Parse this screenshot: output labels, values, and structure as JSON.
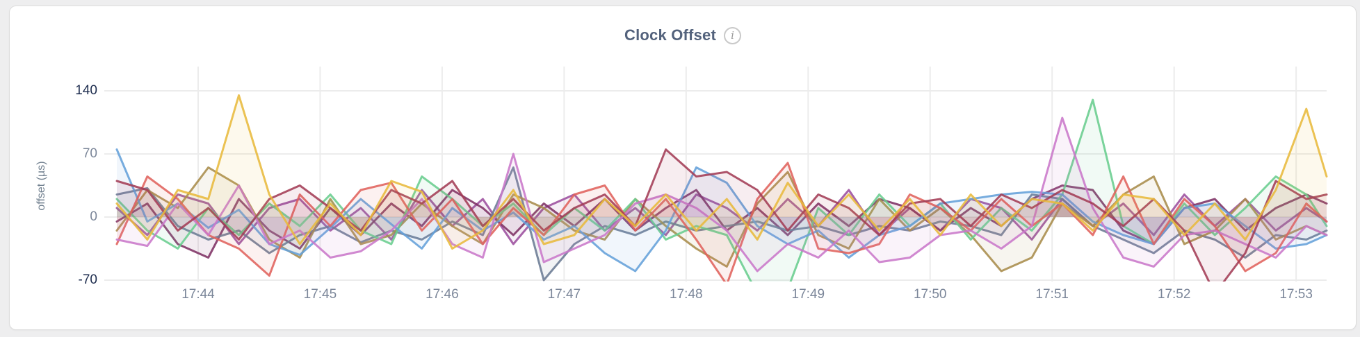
{
  "chart": {
    "title": "Clock Offset",
    "info_icon_glyph": "i",
    "ylabel": "offset (µs)"
  },
  "colors": {
    "page_bg": "#eeeeef",
    "card_bg": "#ffffff",
    "card_border": "#dcdcdc",
    "grid": "#ececec",
    "title_text": "#53627c",
    "tick_strong": "#1c2b4d",
    "tick_muted": "#7b8699",
    "axis_title_text": "#71808f"
  },
  "chart_data": {
    "type": "line",
    "title": "Clock Offset",
    "xlabel": "",
    "ylabel": "offset (µs)",
    "ylim": [
      -70,
      140
    ],
    "xlim_seconds": [
      0,
      595
    ],
    "time_start": "17:43:20",
    "time_end": "17:53:15",
    "grid": true,
    "legend_position": "none",
    "fill_to_zero": true,
    "fill_opacity": 0.09,
    "line_width": 3,
    "y_ticks": [
      {
        "v": 140,
        "label": "140",
        "emphasis": true
      },
      {
        "v": 70,
        "label": "70",
        "emphasis": false
      },
      {
        "v": 0,
        "label": "0",
        "emphasis": false
      },
      {
        "v": -70,
        "label": "-70",
        "emphasis": true
      }
    ],
    "x_ticks": [
      {
        "t": 40,
        "label": "17:44"
      },
      {
        "t": 100,
        "label": "17:45"
      },
      {
        "t": 160,
        "label": "17:46"
      },
      {
        "t": 220,
        "label": "17:47"
      },
      {
        "t": 280,
        "label": "17:48"
      },
      {
        "t": 340,
        "label": "17:49"
      },
      {
        "t": 400,
        "label": "17:50"
      },
      {
        "t": 460,
        "label": "17:51"
      },
      {
        "t": 520,
        "label": "17:52"
      },
      {
        "t": 580,
        "label": "17:53"
      }
    ],
    "x_seconds": [
      0,
      15,
      30,
      45,
      60,
      75,
      90,
      105,
      120,
      135,
      150,
      165,
      180,
      195,
      210,
      225,
      240,
      255,
      270,
      285,
      300,
      315,
      330,
      345,
      360,
      375,
      390,
      405,
      420,
      435,
      450,
      465,
      480,
      495,
      510,
      525,
      540,
      555,
      570,
      585,
      595
    ],
    "series": [
      {
        "name": "purple",
        "color": "#9c4f9e",
        "values": [
          10,
          -20,
          25,
          15,
          -30,
          10,
          20,
          -15,
          10,
          -25,
          30,
          -10,
          20,
          -30,
          10,
          25,
          -15,
          10,
          -20,
          25,
          10,
          -15,
          20,
          -10,
          30,
          -20,
          10,
          -15,
          20,
          10,
          -25,
          20,
          -10,
          15,
          -20,
          25,
          -10,
          20,
          -15,
          10,
          -5
        ]
      },
      {
        "name": "plum",
        "color": "#7e3164",
        "values": [
          -5,
          15,
          -30,
          -45,
          20,
          -15,
          -35,
          10,
          -20,
          15,
          -10,
          30,
          10,
          -20,
          15,
          -10,
          20,
          -15,
          10,
          30,
          -15,
          10,
          -20,
          15,
          -10,
          20,
          10,
          -15,
          10,
          -10,
          20,
          35,
          30,
          -15,
          -30,
          10,
          20,
          -15,
          10,
          25,
          15
        ]
      },
      {
        "name": "slate",
        "color": "#6b7b94",
        "values": [
          25,
          32,
          -10,
          -25,
          -15,
          -40,
          -20,
          -10,
          -28,
          -15,
          -25,
          -5,
          -20,
          55,
          -70,
          -30,
          -10,
          -20,
          -5,
          -15,
          -10,
          -5,
          -15,
          -10,
          -20,
          -10,
          -15,
          -5,
          -10,
          -20,
          25,
          20,
          -10,
          -25,
          -40,
          -15,
          -25,
          -45,
          -20,
          -25,
          -15
        ]
      },
      {
        "name": "khaki",
        "color": "#a98c4b",
        "values": [
          -15,
          30,
          10,
          55,
          35,
          -25,
          -45,
          20,
          -30,
          -20,
          15,
          -10,
          -30,
          25,
          10,
          -15,
          -25,
          20,
          -10,
          -35,
          -55,
          15,
          50,
          -20,
          -35,
          20,
          -15,
          10,
          -20,
          -60,
          -45,
          15,
          -10,
          25,
          45,
          -30,
          -15,
          20,
          -25,
          -10,
          -20
        ]
      },
      {
        "name": "green",
        "color": "#69cd8e",
        "values": [
          20,
          -15,
          -35,
          10,
          -20,
          15,
          -10,
          25,
          -15,
          -30,
          45,
          20,
          -10,
          15,
          -20,
          10,
          -15,
          20,
          -25,
          -10,
          -20,
          -85,
          -80,
          10,
          -20,
          25,
          -10,
          15,
          -25,
          10,
          -15,
          25,
          130,
          -10,
          -30,
          15,
          -20,
          10,
          45,
          25,
          -10
        ]
      },
      {
        "name": "blue",
        "color": "#64a0d9",
        "values": [
          75,
          -5,
          15,
          -12,
          8,
          -30,
          -42,
          -12,
          20,
          -8,
          -35,
          10,
          -15,
          5,
          -25,
          -10,
          -40,
          -60,
          -15,
          55,
          38,
          -10,
          -30,
          -15,
          -45,
          -20,
          -10,
          15,
          20,
          25,
          28,
          25,
          -5,
          -20,
          -30,
          10,
          15,
          -10,
          -35,
          -30,
          -20
        ]
      },
      {
        "name": "red",
        "color": "#e0625c",
        "values": [
          -30,
          45,
          20,
          -20,
          -35,
          -65,
          25,
          -10,
          30,
          38,
          -15,
          20,
          -30,
          10,
          -20,
          25,
          35,
          -15,
          20,
          -25,
          -75,
          20,
          60,
          -35,
          -40,
          -30,
          25,
          10,
          -15,
          20,
          -10,
          15,
          -20,
          45,
          -30,
          20,
          -10,
          -60,
          -40,
          15,
          -5
        ]
      },
      {
        "name": "orchid",
        "color": "#c978c9",
        "values": [
          -25,
          -32,
          15,
          -20,
          35,
          -30,
          -15,
          -45,
          -38,
          -15,
          20,
          -30,
          -45,
          70,
          -50,
          -35,
          -20,
          15,
          25,
          10,
          -15,
          -60,
          -30,
          -45,
          -15,
          -50,
          -45,
          -20,
          -15,
          -35,
          -10,
          110,
          10,
          -45,
          -55,
          -20,
          -15,
          -30,
          -45,
          -10,
          -20
        ]
      },
      {
        "name": "maroon",
        "color": "#a33c55",
        "values": [
          40,
          30,
          -15,
          10,
          -25,
          20,
          35,
          10,
          -15,
          30,
          15,
          40,
          -10,
          20,
          -15,
          10,
          25,
          -10,
          75,
          45,
          50,
          30,
          -15,
          25,
          10,
          -20,
          15,
          20,
          -10,
          25,
          10,
          30,
          15,
          -10,
          20,
          -15,
          -85,
          -40,
          40,
          20,
          25
        ]
      },
      {
        "name": "gold",
        "color": "#e8b93c",
        "values": [
          15,
          -25,
          30,
          20,
          135,
          25,
          -30,
          15,
          -20,
          40,
          28,
          -35,
          -15,
          30,
          -30,
          -20,
          20,
          -10,
          25,
          -15,
          20,
          -25,
          38,
          -10,
          25,
          -15,
          20,
          -20,
          25,
          -10,
          20,
          15,
          -15,
          25,
          20,
          -20,
          15,
          -25,
          30,
          120,
          45
        ]
      }
    ]
  }
}
